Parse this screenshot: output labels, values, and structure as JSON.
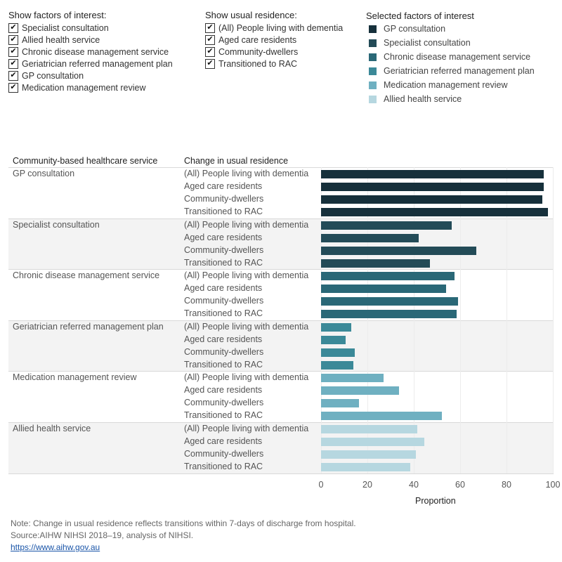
{
  "filters": {
    "factors": {
      "title": "Show factors of interest:",
      "items": [
        {
          "label": "Specialist consultation",
          "checked": true
        },
        {
          "label": "Allied health service",
          "checked": true
        },
        {
          "label": "Chronic disease management service",
          "checked": true
        },
        {
          "label": "Geriatrician referred management plan",
          "checked": true
        },
        {
          "label": "GP consultation",
          "checked": true
        },
        {
          "label": "Medication management review",
          "checked": true
        }
      ]
    },
    "residence": {
      "title": "Show usual residence:",
      "items": [
        {
          "label": "(All) People living with dementia",
          "checked": true
        },
        {
          "label": "Aged care residents",
          "checked": true
        },
        {
          "label": "Community-dwellers",
          "checked": true
        },
        {
          "label": "Transitioned to RAC",
          "checked": true
        }
      ]
    }
  },
  "legend": {
    "title": "Selected factors of interest",
    "items": [
      {
        "label": "GP consultation",
        "color": "#16303b"
      },
      {
        "label": "Specialist consultation",
        "color": "#234b57"
      },
      {
        "label": "Chronic disease management service",
        "color": "#2a6877"
      },
      {
        "label": "Geriatrician referred management plan",
        "color": "#3b8998"
      },
      {
        "label": "Medication management review",
        "color": "#6fb0c1"
      },
      {
        "label": "Allied health service",
        "color": "#b6d7e0"
      }
    ]
  },
  "table": {
    "col1_header": "Community-based healthcare service",
    "col2_header": "Change in usual residence"
  },
  "chart_data": {
    "type": "bar",
    "orientation": "horizontal",
    "xlabel": "Proportion",
    "xlim": [
      0,
      100
    ],
    "xticks": [
      0,
      20,
      40,
      60,
      80,
      100
    ],
    "grid": true,
    "residences": [
      "(All) People living with dementia",
      "Aged care residents",
      "Community-dwellers",
      "Transitioned to RAC"
    ],
    "groups": [
      {
        "service": "GP consultation",
        "color": "#16303b",
        "values": [
          96,
          96,
          95.5,
          98
        ]
      },
      {
        "service": "Specialist consultation",
        "color": "#234b57",
        "values": [
          56.5,
          42,
          67,
          47
        ]
      },
      {
        "service": "Chronic disease management service",
        "color": "#2a6877",
        "values": [
          57.5,
          54,
          59,
          58.5
        ]
      },
      {
        "service": "Geriatrician referred management plan",
        "color": "#3b8998",
        "values": [
          13,
          10.5,
          14.5,
          14
        ]
      },
      {
        "service": "Medication management review",
        "color": "#6fb0c1",
        "values": [
          27,
          33.5,
          16.5,
          52
        ]
      },
      {
        "service": "Allied health service",
        "color": "#b6d7e0",
        "values": [
          41.5,
          44.5,
          41,
          38.5
        ]
      }
    ]
  },
  "footer": {
    "note": "Note: Change in usual residence reflects transitions within 7-days of discharge from hospital.",
    "source": "Source:AIHW NIHSI 2018–19, analysis of NIHSI.",
    "link": "https://www.aihw.gov.au"
  }
}
